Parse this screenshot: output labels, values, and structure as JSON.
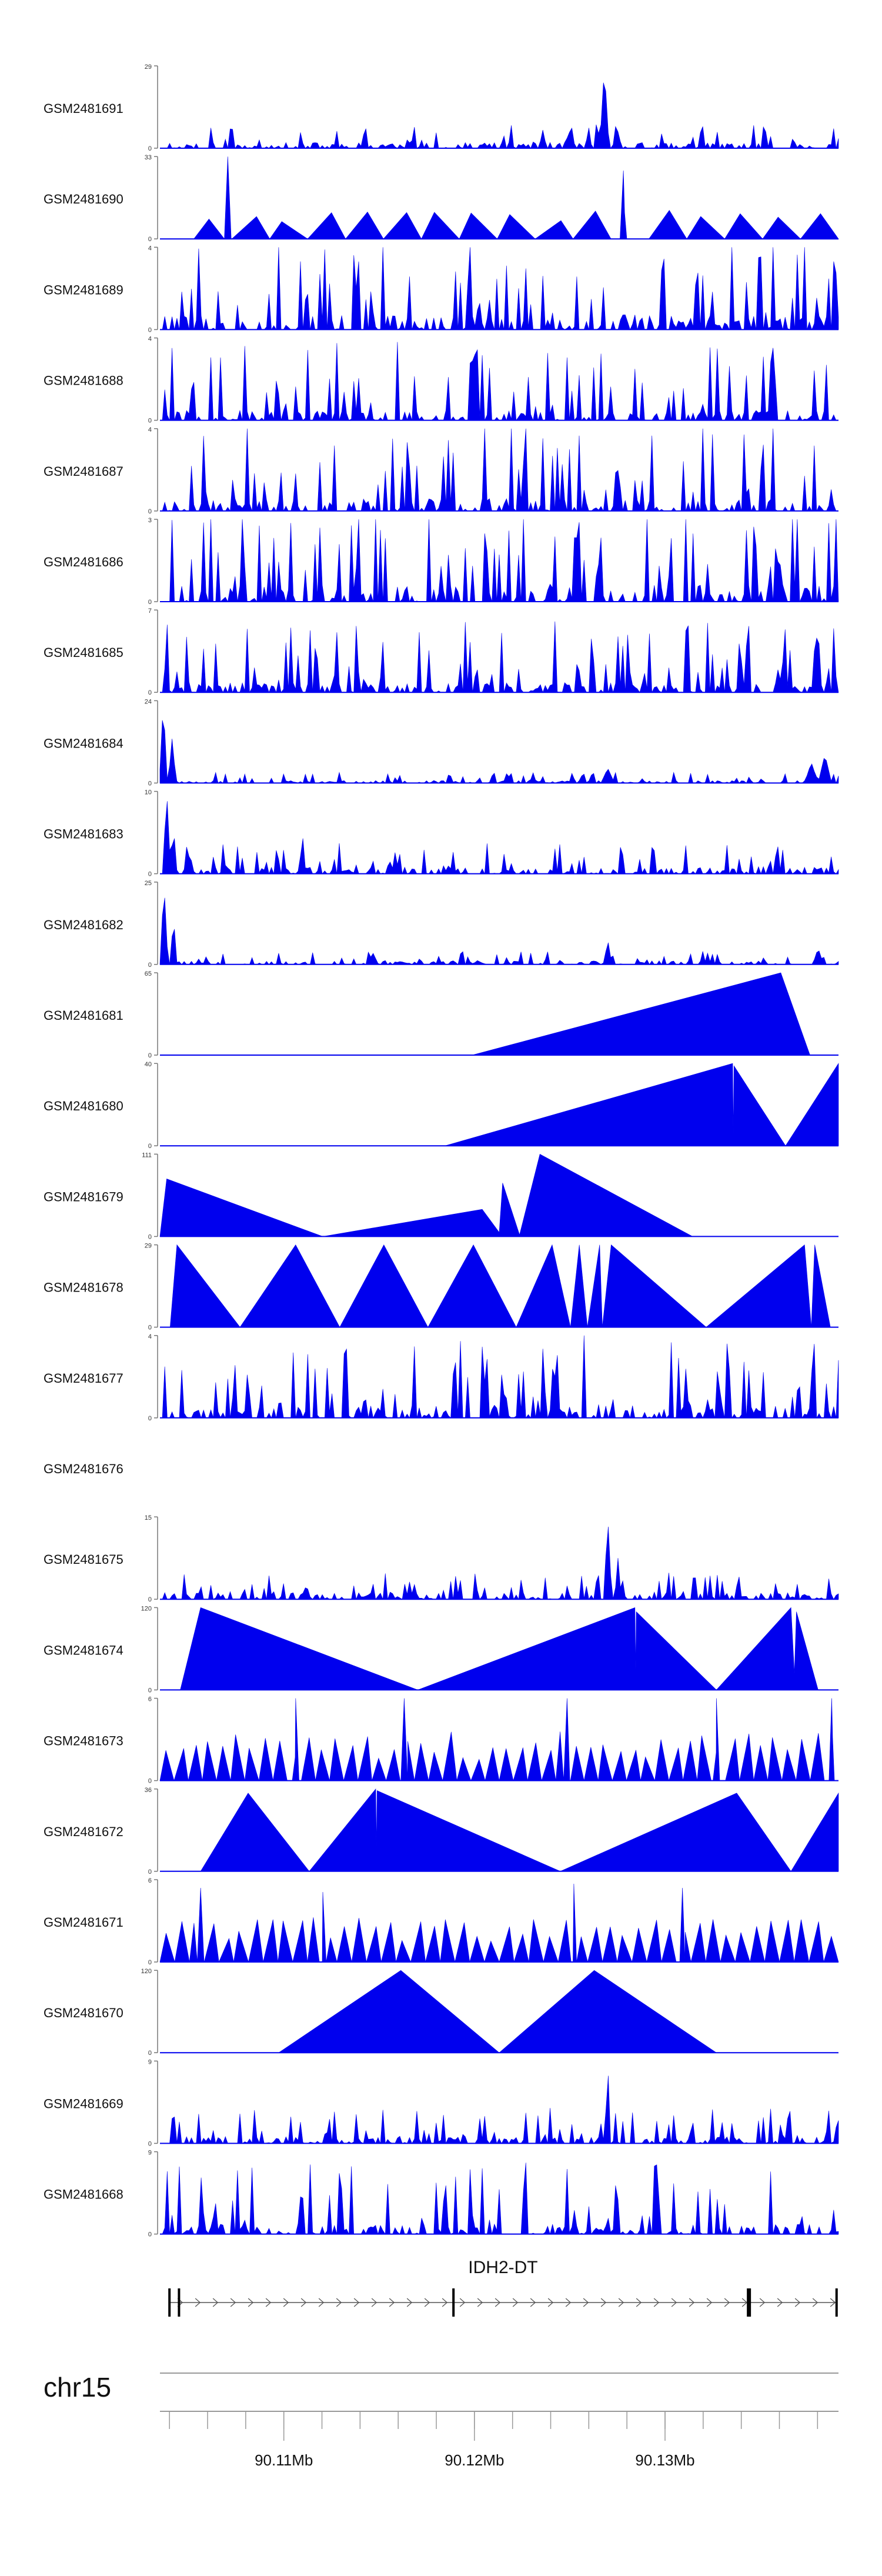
{
  "chart_data": {
    "type": "area",
    "title": "",
    "xlabel": "",
    "ylabel": "",
    "xlim": [
      90.1035,
      90.1391
    ],
    "track_color": "#0000ee",
    "tracks": [
      {
        "name": "GSM2481691",
        "ymax": 29,
        "ymin": 0,
        "style": "spiky",
        "seed": 11,
        "base": 0.07,
        "spike": 0.22,
        "start": 0.0,
        "peaks": [
          [
            0.655,
            1.0,
            0.007
          ],
          [
            0.675,
            0.2,
            0.006
          ],
          [
            0.645,
            0.28,
            0.004
          ]
        ]
      },
      {
        "name": "GSM2481690",
        "ymax": 33,
        "ymin": 0,
        "style": "triangles",
        "seed": 22,
        "start": 0.05,
        "end": 1.0,
        "count": 17,
        "hmin": 0.2,
        "hmax": 0.35,
        "peaks": [
          [
            0.1,
            1.0,
            0.005
          ],
          [
            0.683,
            0.83,
            0.005
          ]
        ]
      },
      {
        "name": "GSM2481689",
        "ymax": 4,
        "ymin": 0,
        "style": "spiky",
        "seed": 33,
        "base": 0.18,
        "spike": 0.95,
        "start": 0.0,
        "peaks": []
      },
      {
        "name": "GSM2481688",
        "ymax": 4,
        "ymin": 0,
        "style": "spiky",
        "seed": 44,
        "base": 0.12,
        "spike": 0.85,
        "start": 0.0,
        "peaks": [
          [
            0.09,
            1.0,
            0.003
          ]
        ]
      },
      {
        "name": "GSM2481687",
        "ymax": 4,
        "ymin": 0,
        "style": "spiky",
        "seed": 55,
        "base": 0.15,
        "spike": 0.95,
        "start": 0.0,
        "peaks": []
      },
      {
        "name": "GSM2481686",
        "ymax": 3,
        "ymin": 0,
        "style": "spiky",
        "seed": 66,
        "base": 0.2,
        "spike": 1.0,
        "start": 0.0,
        "peaks": []
      },
      {
        "name": "GSM2481685",
        "ymax": 7,
        "ymin": 0,
        "style": "spiky",
        "seed": 77,
        "base": 0.12,
        "spike": 0.75,
        "start": 0.0,
        "peaks": [
          [
            0.01,
            1.0,
            0.004
          ],
          [
            0.69,
            0.85,
            0.004
          ]
        ]
      },
      {
        "name": "GSM2481684",
        "ymax": 24,
        "ymin": 0,
        "style": "spiky",
        "seed": 88,
        "base": 0.03,
        "spike": 0.1,
        "start": 0.0,
        "peaks": [
          [
            0.005,
            1.0,
            0.006
          ],
          [
            0.018,
            0.55,
            0.006
          ],
          [
            0.66,
            0.18,
            0.01
          ],
          [
            0.98,
            0.35,
            0.01
          ],
          [
            0.96,
            0.25,
            0.01
          ]
        ]
      },
      {
        "name": "GSM2481683",
        "ymax": 10,
        "ymin": 0,
        "style": "spiky",
        "seed": 99,
        "base": 0.08,
        "spike": 0.3,
        "start": 0.0,
        "peaks": [
          [
            0.01,
            1.0,
            0.006
          ],
          [
            0.02,
            0.6,
            0.005
          ],
          [
            0.21,
            0.5,
            0.005
          ],
          [
            0.68,
            0.5,
            0.004
          ]
        ]
      },
      {
        "name": "GSM2481682",
        "ymax": 25,
        "ymin": 0,
        "style": "spiky",
        "seed": 121,
        "base": 0.04,
        "spike": 0.12,
        "start": 0.0,
        "peaks": [
          [
            0.006,
            1.0,
            0.006
          ],
          [
            0.02,
            0.6,
            0.005
          ],
          [
            0.66,
            0.3,
            0.006
          ],
          [
            0.97,
            0.2,
            0.008
          ]
        ]
      },
      {
        "name": "GSM2481681",
        "ymax": 65,
        "ymin": 0,
        "style": "poly",
        "pts": [
          [
            0.46,
            0.0
          ],
          [
            0.915,
            1.0
          ],
          [
            0.958,
            0.0
          ]
        ]
      },
      {
        "name": "GSM2481680",
        "ymax": 40,
        "ymin": 0,
        "style": "poly",
        "pts": [
          [
            0.42,
            0.0
          ],
          [
            0.844,
            1.0
          ],
          [
            0.845,
            0.15
          ],
          [
            0.846,
            0.97
          ],
          [
            0.922,
            0.0
          ],
          [
            1.0,
            1.0
          ]
        ]
      },
      {
        "name": "GSM2481679",
        "ymax": 111,
        "ymin": 0,
        "style": "poly",
        "pts": [
          [
            0.0,
            0.0
          ],
          [
            0.01,
            0.7
          ],
          [
            0.24,
            0.0
          ],
          [
            0.475,
            0.33
          ],
          [
            0.5,
            0.05
          ],
          [
            0.505,
            0.65
          ],
          [
            0.53,
            0.02
          ],
          [
            0.56,
            1.0
          ],
          [
            0.785,
            0.0
          ]
        ]
      },
      {
        "name": "GSM2481678",
        "ymax": 29,
        "ymin": 0,
        "style": "poly",
        "pts": [
          [
            0.015,
            0.0
          ],
          [
            0.025,
            1.0
          ],
          [
            0.118,
            0.0
          ],
          [
            0.2,
            1.0
          ],
          [
            0.265,
            0.0
          ],
          [
            0.33,
            1.0
          ],
          [
            0.395,
            0.0
          ],
          [
            0.462,
            1.0
          ],
          [
            0.525,
            0.0
          ],
          [
            0.578,
            1.0
          ],
          [
            0.605,
            0.0
          ],
          [
            0.618,
            1.0
          ],
          [
            0.63,
            0.0
          ],
          [
            0.648,
            1.0
          ],
          [
            0.652,
            0.0
          ],
          [
            0.665,
            1.0
          ],
          [
            0.805,
            0.0
          ],
          [
            0.95,
            1.0
          ],
          [
            0.96,
            0.0
          ],
          [
            0.965,
            1.0
          ],
          [
            0.988,
            0.0
          ]
        ]
      },
      {
        "name": "GSM2481677",
        "ymax": 4,
        "ymin": 0,
        "style": "spiky",
        "seed": 133,
        "base": 0.15,
        "spike": 0.8,
        "start": 0.0,
        "peaks": [
          [
            0.13,
            1.0,
            0.003
          ],
          [
            0.505,
            1.0,
            0.003
          ],
          [
            0.625,
            1.0,
            0.003
          ]
        ]
      },
      {
        "name": "GSM2481676",
        "ymax": null,
        "ymin": null,
        "style": "empty"
      },
      {
        "name": "GSM2481675",
        "ymax": 15,
        "ymin": 0,
        "style": "spiky",
        "seed": 144,
        "base": 0.08,
        "spike": 0.25,
        "start": 0.0,
        "peaks": [
          [
            0.66,
            1.0,
            0.006
          ],
          [
            0.675,
            0.5,
            0.005
          ],
          [
            0.645,
            0.45,
            0.004
          ]
        ]
      },
      {
        "name": "GSM2481674",
        "ymax": 120,
        "ymin": 0,
        "style": "poly",
        "pts": [
          [
            0.03,
            0.0
          ],
          [
            0.06,
            1.0
          ],
          [
            0.38,
            0.0
          ],
          [
            0.7,
            1.0
          ],
          [
            0.701,
            0.25
          ],
          [
            0.702,
            0.95
          ],
          [
            0.82,
            0.0
          ],
          [
            0.93,
            1.0
          ],
          [
            0.935,
            0.2
          ],
          [
            0.938,
            0.95
          ],
          [
            0.97,
            0.0
          ]
        ]
      },
      {
        "name": "GSM2481673",
        "ymax": 6,
        "ymin": 0,
        "style": "triangles",
        "seed": 155,
        "start": 0.0,
        "end": 1.0,
        "count": 48,
        "hmin": 0.25,
        "hmax": 0.6,
        "peaks": [
          [
            0.2,
            1.0,
            0.005
          ],
          [
            0.36,
            1.0,
            0.005
          ],
          [
            0.6,
            1.0,
            0.005
          ],
          [
            0.82,
            1.0,
            0.005
          ],
          [
            0.99,
            1.0,
            0.004
          ]
        ]
      },
      {
        "name": "GSM2481672",
        "ymax": 36,
        "ymin": 0,
        "style": "poly",
        "pts": [
          [
            0.06,
            0.0
          ],
          [
            0.13,
            0.95
          ],
          [
            0.22,
            0.0
          ],
          [
            0.318,
            1.0
          ],
          [
            0.319,
            0.3
          ],
          [
            0.32,
            0.98
          ],
          [
            0.59,
            0.0
          ],
          [
            0.85,
            0.95
          ],
          [
            0.93,
            0.0
          ],
          [
            1.0,
            0.95
          ]
        ]
      },
      {
        "name": "GSM2481671",
        "ymax": 6,
        "ymin": 0,
        "style": "triangles",
        "seed": 166,
        "start": 0.0,
        "end": 1.0,
        "count": 46,
        "hmin": 0.25,
        "hmax": 0.55,
        "peaks": [
          [
            0.06,
            0.9,
            0.005
          ],
          [
            0.24,
            0.85,
            0.005
          ],
          [
            0.61,
            0.95,
            0.004
          ],
          [
            0.77,
            0.9,
            0.004
          ]
        ]
      },
      {
        "name": "GSM2481670",
        "ymax": 120,
        "ymin": 0,
        "style": "poly",
        "pts": [
          [
            0.175,
            0.0
          ],
          [
            0.355,
            1.0
          ],
          [
            0.5,
            0.0
          ],
          [
            0.64,
            1.0
          ],
          [
            0.82,
            0.0
          ]
        ]
      },
      {
        "name": "GSM2481669",
        "ymax": 9,
        "ymin": 0,
        "style": "spiky",
        "seed": 177,
        "base": 0.08,
        "spike": 0.35,
        "start": 0.0,
        "peaks": [
          [
            0.66,
            1.0,
            0.004
          ],
          [
            0.02,
            0.45,
            0.005
          ]
        ]
      },
      {
        "name": "GSM2481668",
        "ymax": 9,
        "ymin": 0,
        "style": "spiky",
        "seed": 188,
        "base": 0.12,
        "spike": 0.75,
        "start": 0.0,
        "peaks": [
          [
            0.01,
            1.0,
            0.003
          ],
          [
            0.06,
            0.9,
            0.003
          ]
        ]
      }
    ],
    "gene": {
      "name": "IDH2-DT",
      "strand": "+",
      "exons": [
        90.104,
        90.1045,
        90.1189,
        90.1344,
        90.139
      ]
    },
    "axis": {
      "chromosome": "chr15",
      "ticks": [
        90.104,
        90.106,
        90.108,
        90.11,
        90.112,
        90.114,
        90.116,
        90.118,
        90.12,
        90.122,
        90.124,
        90.126,
        90.128,
        90.13,
        90.132,
        90.134,
        90.136,
        90.138
      ],
      "tick_labels": [
        {
          "value": 90.11,
          "label": "90.11Mb"
        },
        {
          "value": 90.12,
          "label": "90.12Mb"
        },
        {
          "value": 90.13,
          "label": "90.13Mb"
        }
      ]
    }
  }
}
